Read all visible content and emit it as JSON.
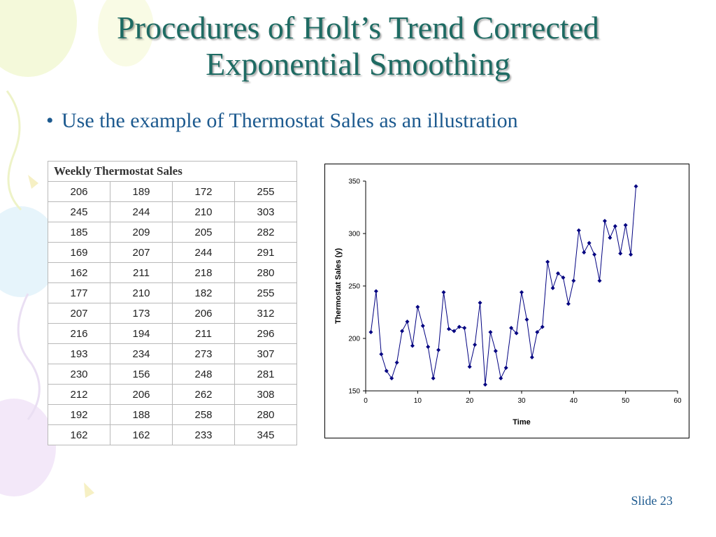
{
  "slide": {
    "title_line1": "Procedures of Holt’s Trend Corrected",
    "title_line2": "Exponential Smoothing",
    "bullet_text": "Use the example of Thermostat Sales as an illustration",
    "slide_number": "Slide 23"
  },
  "table": {
    "header": "Weekly Thermostat Sales",
    "rows": [
      [
        "206",
        "189",
        "172",
        "255"
      ],
      [
        "245",
        "244",
        "210",
        "303"
      ],
      [
        "185",
        "209",
        "205",
        "282"
      ],
      [
        "169",
        "207",
        "244",
        "291"
      ],
      [
        "162",
        "211",
        "218",
        "280"
      ],
      [
        "177",
        "210",
        "182",
        "255"
      ],
      [
        "207",
        "173",
        "206",
        "312"
      ],
      [
        "216",
        "194",
        "211",
        "296"
      ],
      [
        "193",
        "234",
        "273",
        "307"
      ],
      [
        "230",
        "156",
        "248",
        "281"
      ],
      [
        "212",
        "206",
        "262",
        "308"
      ],
      [
        "192",
        "188",
        "258",
        "280"
      ],
      [
        "162",
        "162",
        "233",
        "345"
      ]
    ]
  },
  "chart_data": {
    "type": "line",
    "xlabel": "Time",
    "ylabel": "Thermostat Sales (y)",
    "xlim": [
      0,
      60
    ],
    "ylim": [
      150,
      350
    ],
    "xticks": [
      0,
      10,
      20,
      30,
      40,
      50,
      60
    ],
    "yticks": [
      150,
      200,
      250,
      300,
      350
    ],
    "grid": false,
    "color": "#000080",
    "x": [
      1,
      2,
      3,
      4,
      5,
      6,
      7,
      8,
      9,
      10,
      11,
      12,
      13,
      14,
      15,
      16,
      17,
      18,
      19,
      20,
      21,
      22,
      23,
      24,
      25,
      26,
      27,
      28,
      29,
      30,
      31,
      32,
      33,
      34,
      35,
      36,
      37,
      38,
      39,
      40,
      41,
      42,
      43,
      44,
      45,
      46,
      47,
      48,
      49,
      50,
      51,
      52
    ],
    "y": [
      206,
      245,
      185,
      169,
      162,
      177,
      207,
      216,
      193,
      230,
      212,
      192,
      162,
      189,
      244,
      209,
      207,
      211,
      210,
      173,
      194,
      234,
      156,
      206,
      188,
      162,
      172,
      210,
      205,
      244,
      218,
      182,
      206,
      211,
      273,
      248,
      262,
      258,
      233,
      255,
      303,
      282,
      291,
      280,
      255,
      312,
      296,
      307,
      281,
      308,
      280,
      345
    ]
  }
}
